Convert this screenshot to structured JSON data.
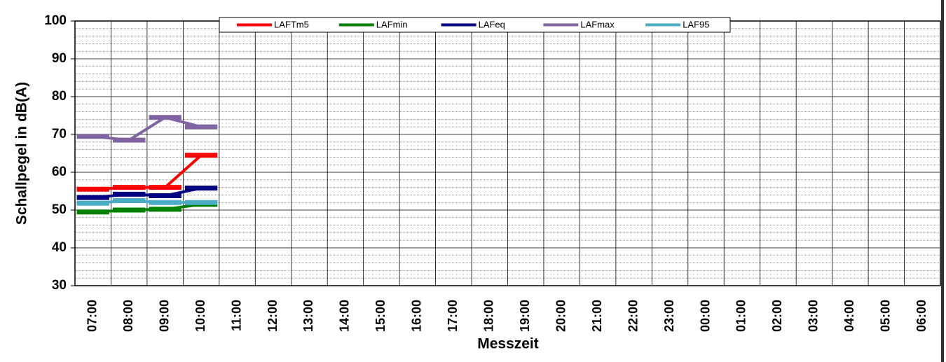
{
  "chart_data": {
    "type": "line",
    "y_label": "Schallpegel in dB(A)",
    "x_label": "Messzeit",
    "categories": [
      "07:00",
      "08:00",
      "09:00",
      "10:00",
      "11:00",
      "12:00",
      "13:00",
      "14:00",
      "15:00",
      "16:00",
      "17:00",
      "18:00",
      "19:00",
      "20:00",
      "21:00",
      "22:00",
      "23:00",
      "00:00",
      "01:00",
      "02:00",
      "03:00",
      "04:00",
      "05:00",
      "06:00"
    ],
    "series": [
      {
        "name": "LAFTm5",
        "color": "#ff0000",
        "values": [
          55.5,
          56,
          56,
          64.5,
          null,
          null,
          null,
          null,
          null,
          null,
          null,
          null,
          null,
          null,
          null,
          null,
          null,
          null,
          null,
          null,
          null,
          null,
          null,
          null
        ]
      },
      {
        "name": "LAFmin",
        "color": "#008000",
        "values": [
          49.5,
          50,
          50.2,
          51.5,
          null,
          null,
          null,
          null,
          null,
          null,
          null,
          null,
          null,
          null,
          null,
          null,
          null,
          null,
          null,
          null,
          null,
          null,
          null,
          null
        ]
      },
      {
        "name": "LAFeq",
        "color": "#000080",
        "values": [
          53.3,
          54.2,
          53.8,
          55.8,
          null,
          null,
          null,
          null,
          null,
          null,
          null,
          null,
          null,
          null,
          null,
          null,
          null,
          null,
          null,
          null,
          null,
          null,
          null,
          null
        ]
      },
      {
        "name": "LAFmax",
        "color": "#8064a2",
        "values": [
          69.5,
          68.5,
          74.5,
          72,
          null,
          null,
          null,
          null,
          null,
          null,
          null,
          null,
          null,
          null,
          null,
          null,
          null,
          null,
          null,
          null,
          null,
          null,
          null,
          null
        ]
      },
      {
        "name": "LAF95",
        "color": "#4bacc6",
        "values": [
          51.8,
          52.5,
          52,
          52,
          null,
          null,
          null,
          null,
          null,
          null,
          null,
          null,
          null,
          null,
          null,
          null,
          null,
          null,
          null,
          null,
          null,
          null,
          null,
          null
        ]
      }
    ],
    "ylim": [
      30,
      100
    ],
    "yticks": [
      30,
      40,
      50,
      60,
      70,
      80,
      90,
      100
    ],
    "grid": true
  }
}
